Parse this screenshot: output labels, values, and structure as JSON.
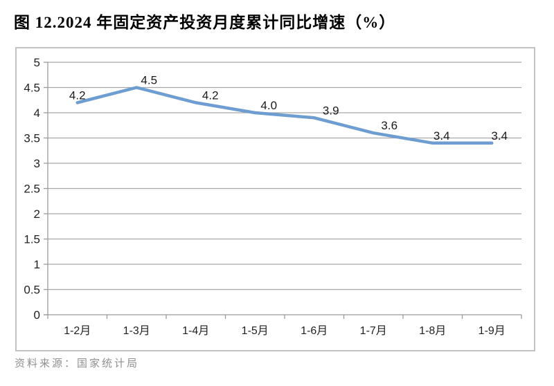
{
  "title": "图 12.2024 年固定资产投资月度累计同比增速（%）",
  "source": "资料来源：国家统计局",
  "chart_data": {
    "type": "line",
    "title": "2024 年固定资产投资月度累计同比增速（%）",
    "categories": [
      "1-2月",
      "1-3月",
      "1-4月",
      "1-5月",
      "1-6月",
      "1-7月",
      "1-8月",
      "1-9月"
    ],
    "values": [
      4.2,
      4.5,
      4.2,
      4.0,
      3.9,
      3.6,
      3.4,
      3.4
    ],
    "point_labels": [
      "4.2",
      "4.5",
      "4.2",
      "4.0",
      "3.9",
      "3.6",
      "3.4",
      "3.4"
    ],
    "xlabel": "",
    "ylabel": "",
    "ylim": [
      0,
      5
    ],
    "ytick_step": 0.5,
    "ytick_labels": [
      "0",
      "0.5",
      "1",
      "1.5",
      "2",
      "2.5",
      "3",
      "3.5",
      "4",
      "4.5",
      "5"
    ],
    "grid": true,
    "legend": "none",
    "label_dx": [
      0,
      18,
      21,
      20,
      24,
      23,
      13,
      11
    ]
  },
  "colors": {
    "line": "#6d9dd1",
    "gridline": "#a6a6a6",
    "axis": "#9a9a9a",
    "chart_border": "#c3c3c3",
    "tick_text": "#1f1f1f",
    "data_label_text": "#1a1a1a",
    "title_text": "#000000",
    "source_text": "#8f8f8f"
  }
}
